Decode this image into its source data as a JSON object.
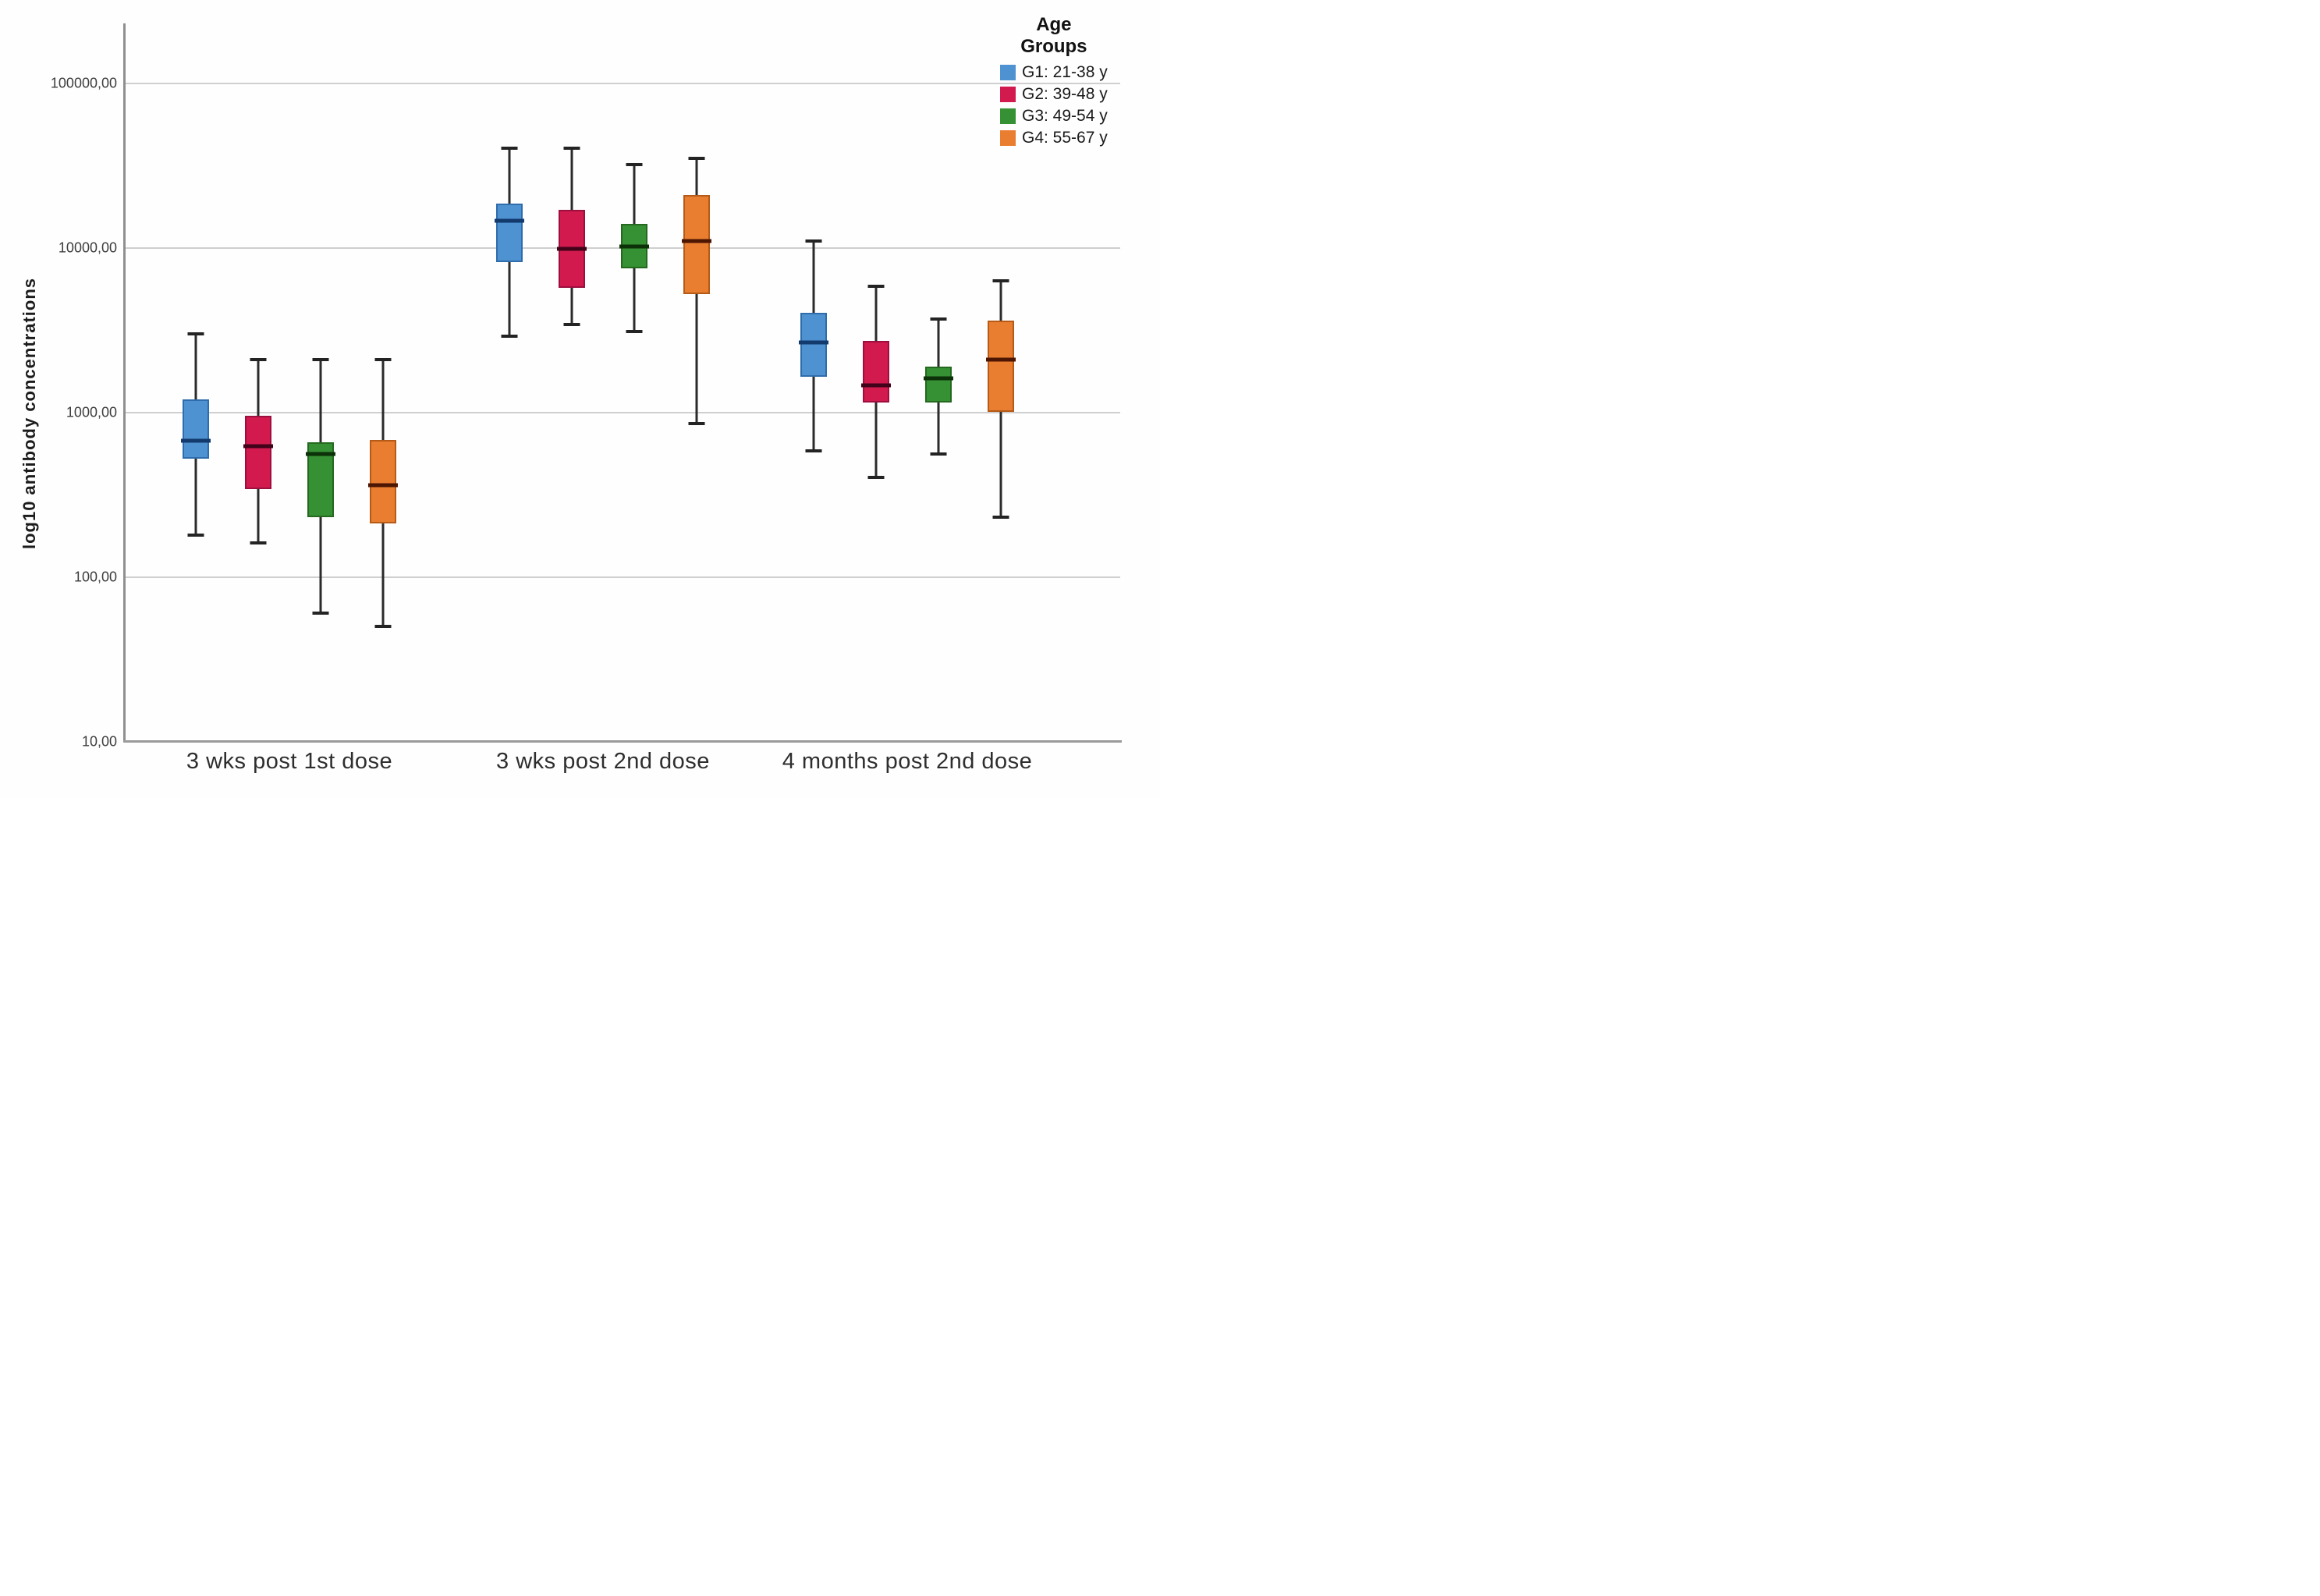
{
  "chart_data": {
    "type": "box",
    "title": "",
    "ylabel": "log10 antibody concentrations",
    "xlabel": "",
    "y_axis": {
      "scale": "log10",
      "min": 10,
      "max": 230000,
      "grid": true,
      "ticks": [
        {
          "value": 100000,
          "label": "100000,00"
        },
        {
          "value": 10000,
          "label": "10000,00"
        },
        {
          "value": 1000,
          "label": "1000,00"
        },
        {
          "value": 100,
          "label": "100,00"
        },
        {
          "value": 10,
          "label": "10,00"
        }
      ]
    },
    "categories": [
      "3 wks post 1st dose",
      "3 wks post 2nd dose",
      "4 months post 2nd dose"
    ],
    "legend": {
      "title": "Age\nGroups",
      "position": "top-right"
    },
    "series": [
      {
        "name": "G1: 21-38 y",
        "fill": "#4f92d1",
        "border": "#2f6cab",
        "median_color": "#123a6d",
        "boxes": [
          {
            "min": 180,
            "q1": 520,
            "median": 670,
            "q3": 1200,
            "max": 3000
          },
          {
            "min": 2900,
            "q1": 8200,
            "median": 14500,
            "q3": 18500,
            "max": 40000
          },
          {
            "min": 580,
            "q1": 1650,
            "median": 2650,
            "q3": 4000,
            "max": 11000
          }
        ]
      },
      {
        "name": "G2: 39-48 y",
        "fill": "#d31a4e",
        "border": "#9c0f3e",
        "median_color": "#40031a",
        "boxes": [
          {
            "min": 160,
            "q1": 340,
            "median": 620,
            "q3": 950,
            "max": 2100
          },
          {
            "min": 3400,
            "q1": 5700,
            "median": 9800,
            "q3": 17000,
            "max": 40000
          },
          {
            "min": 400,
            "q1": 1150,
            "median": 1450,
            "q3": 2700,
            "max": 5800
          }
        ]
      },
      {
        "name": "G3: 49-54 y",
        "fill": "#359133",
        "border": "#24691f",
        "median_color": "#0c3008",
        "boxes": [
          {
            "min": 60,
            "q1": 230,
            "median": 560,
            "q3": 660,
            "max": 2100
          },
          {
            "min": 3100,
            "q1": 7500,
            "median": 10200,
            "q3": 14000,
            "max": 32000
          },
          {
            "min": 560,
            "q1": 1150,
            "median": 1600,
            "q3": 1900,
            "max": 3700
          }
        ]
      },
      {
        "name": "G4: 55-67 y",
        "fill": "#e97e30",
        "border": "#b55a17",
        "median_color": "#4d1603",
        "boxes": [
          {
            "min": 50,
            "q1": 210,
            "median": 360,
            "q3": 680,
            "max": 2100
          },
          {
            "min": 850,
            "q1": 5200,
            "median": 11000,
            "q3": 21000,
            "max": 35000
          },
          {
            "min": 230,
            "q1": 1000,
            "median": 2100,
            "q3": 3600,
            "max": 6300
          }
        ]
      }
    ]
  }
}
